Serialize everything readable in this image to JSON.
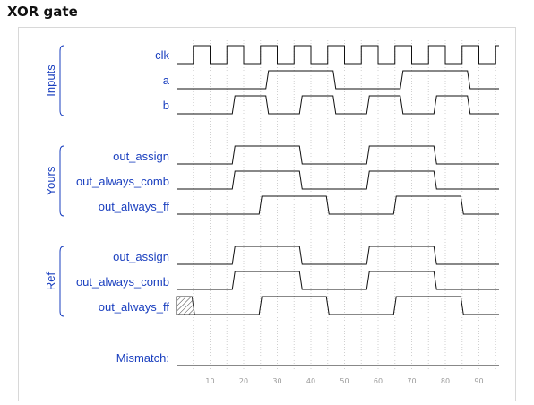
{
  "title": "XOR gate",
  "groups": [
    {
      "label": "Inputs",
      "signals": [
        "clk",
        "a",
        "b"
      ]
    },
    {
      "label": "Yours",
      "signals": [
        "out_assign",
        "out_always_comb",
        "out_always_ff"
      ]
    },
    {
      "label": "Ref",
      "signals": [
        "out_assign",
        "out_always_comb",
        "out_always_ff"
      ]
    }
  ],
  "mismatch_label": "Mismatch:",
  "time_axis": {
    "min": 0,
    "max": 96,
    "ticks": [
      10,
      20,
      30,
      40,
      50,
      60,
      70,
      80,
      90
    ]
  },
  "waves": {
    "clk": [
      [
        0,
        0
      ],
      [
        5,
        1
      ],
      [
        10,
        0
      ],
      [
        15,
        1
      ],
      [
        20,
        0
      ],
      [
        25,
        1
      ],
      [
        30,
        0
      ],
      [
        35,
        1
      ],
      [
        40,
        0
      ],
      [
        45,
        1
      ],
      [
        50,
        0
      ],
      [
        55,
        1
      ],
      [
        60,
        0
      ],
      [
        65,
        1
      ],
      [
        70,
        0
      ],
      [
        75,
        1
      ],
      [
        80,
        0
      ],
      [
        85,
        1
      ],
      [
        90,
        0
      ],
      [
        95,
        1
      ]
    ],
    "a": [
      [
        0,
        0
      ],
      [
        27,
        1
      ],
      [
        47,
        0
      ],
      [
        67,
        1
      ],
      [
        87,
        0
      ]
    ],
    "b": [
      [
        0,
        0
      ],
      [
        17,
        1
      ],
      [
        27,
        0
      ],
      [
        37,
        1
      ],
      [
        47,
        0
      ],
      [
        57,
        1
      ],
      [
        67,
        0
      ],
      [
        77,
        1
      ],
      [
        87,
        0
      ]
    ],
    "yours_out_assign": [
      [
        0,
        0
      ],
      [
        17,
        1
      ],
      [
        37,
        0
      ],
      [
        57,
        1
      ],
      [
        77,
        0
      ]
    ],
    "yours_out_always_comb": [
      [
        0,
        0
      ],
      [
        17,
        1
      ],
      [
        37,
        0
      ],
      [
        57,
        1
      ],
      [
        77,
        0
      ]
    ],
    "yours_out_always_ff": [
      [
        0,
        0
      ],
      [
        25,
        1
      ],
      [
        45,
        0
      ],
      [
        65,
        1
      ],
      [
        85,
        0
      ]
    ],
    "ref_out_assign": [
      [
        0,
        0
      ],
      [
        17,
        1
      ],
      [
        37,
        0
      ],
      [
        57,
        1
      ],
      [
        77,
        0
      ]
    ],
    "ref_out_always_comb": [
      [
        0,
        0
      ],
      [
        17,
        1
      ],
      [
        37,
        0
      ],
      [
        57,
        1
      ],
      [
        77,
        0
      ]
    ],
    "ref_out_always_ff": [
      [
        0,
        "x"
      ],
      [
        5,
        0
      ],
      [
        25,
        1
      ],
      [
        45,
        0
      ],
      [
        65,
        1
      ],
      [
        85,
        0
      ]
    ],
    "mismatch": [
      [
        0,
        0
      ]
    ]
  }
}
